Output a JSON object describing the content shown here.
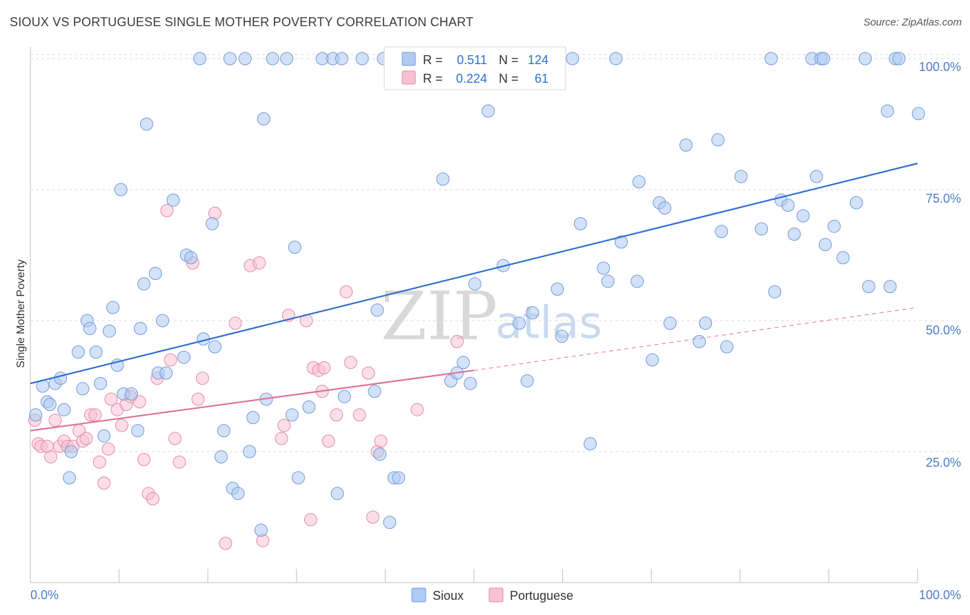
{
  "header": {
    "title": "SIOUX VS PORTUGUESE SINGLE MOTHER POVERTY CORRELATION CHART",
    "source": "Source: ZipAtlas.com"
  },
  "watermark": {
    "zip": "ZIP",
    "atlas": "atlas"
  },
  "legend": {
    "r_label": "R =",
    "n_label": "N =",
    "rows": [
      {
        "name": "Sioux",
        "r": "0.511",
        "n": "124",
        "fill": "#aecbf2",
        "stroke": "#6f9ad8"
      },
      {
        "name": "Portuguese",
        "r": "0.224",
        "n": "61",
        "fill": "#f7c2d3",
        "stroke": "#e48aa8"
      }
    ]
  },
  "bottom_legend": [
    {
      "name": "Sioux",
      "fill": "#aecbf2",
      "stroke": "#6f9ad8"
    },
    {
      "name": "Portuguese",
      "fill": "#f7c2d3",
      "stroke": "#e48aa8"
    }
  ],
  "chart_data": {
    "type": "scatter",
    "title": "SIOUX VS PORTUGUESE SINGLE MOTHER POVERTY CORRELATION CHART",
    "xlabel": "",
    "ylabel": "Single Mother Poverty",
    "xlim": [
      0,
      100
    ],
    "ylim": [
      0,
      103
    ],
    "x_tick_labels": [
      "0.0%",
      "100.0%"
    ],
    "y_ticks": [
      25,
      50,
      75,
      100
    ],
    "y_tick_labels": [
      "25.0%",
      "50.0%",
      "75.0%",
      "100.0%"
    ],
    "grid": true,
    "colors": {
      "sioux": "#6f9ad8",
      "sioux_fill": "#aecbf2",
      "sioux_line": "#2f6fd0",
      "portuguese": "#e48aa8",
      "portuguese_fill": "#f7c2d3",
      "portuguese_line": "#e0729a"
    },
    "series": [
      {
        "name": "Sioux",
        "trend": {
          "x": [
            0,
            100
          ],
          "y": [
            38,
            80
          ]
        },
        "points": [
          [
            0.6,
            32
          ],
          [
            1.4,
            37.5
          ],
          [
            1.9,
            34.5
          ],
          [
            2.2,
            34
          ],
          [
            2.8,
            38
          ],
          [
            3.4,
            39
          ],
          [
            3.8,
            33
          ],
          [
            4.4,
            20
          ],
          [
            4.6,
            25
          ],
          [
            5.4,
            44
          ],
          [
            5.9,
            37
          ],
          [
            6.4,
            50
          ],
          [
            6.7,
            48.5
          ],
          [
            7.4,
            44
          ],
          [
            7.9,
            38
          ],
          [
            8.3,
            28
          ],
          [
            8.9,
            48
          ],
          [
            9.3,
            52.5
          ],
          [
            9.8,
            41.5
          ],
          [
            10.2,
            75
          ],
          [
            10.5,
            36
          ],
          [
            11.4,
            36
          ],
          [
            12.1,
            29
          ],
          [
            12.4,
            48.5
          ],
          [
            12.8,
            57
          ],
          [
            13.1,
            87.5
          ],
          [
            14.1,
            59
          ],
          [
            14.4,
            40
          ],
          [
            14.9,
            50
          ],
          [
            15.3,
            40
          ],
          [
            16.1,
            73
          ],
          [
            17.3,
            43
          ],
          [
            17.6,
            62.5
          ],
          [
            18.1,
            62
          ],
          [
            19.1,
            100
          ],
          [
            19.5,
            46.5
          ],
          [
            20.5,
            68.5
          ],
          [
            20.8,
            45
          ],
          [
            21.5,
            24
          ],
          [
            21.8,
            29
          ],
          [
            22.5,
            100
          ],
          [
            22.8,
            18
          ],
          [
            23.4,
            17
          ],
          [
            24.2,
            100
          ],
          [
            24.7,
            25
          ],
          [
            25.1,
            31.5
          ],
          [
            26.0,
            10
          ],
          [
            26.3,
            88.5
          ],
          [
            26.6,
            35
          ],
          [
            27.3,
            100
          ],
          [
            28.9,
            100
          ],
          [
            29.5,
            32
          ],
          [
            29.8,
            64
          ],
          [
            30.2,
            20
          ],
          [
            31.4,
            33.5
          ],
          [
            32.9,
            100
          ],
          [
            34.1,
            100
          ],
          [
            34.6,
            17
          ],
          [
            35.1,
            100
          ],
          [
            35.4,
            35.5
          ],
          [
            37.4,
            100
          ],
          [
            38.8,
            36.5
          ],
          [
            39.1,
            52
          ],
          [
            39.4,
            24.5
          ],
          [
            39.8,
            100
          ],
          [
            40.5,
            11.5
          ],
          [
            41.0,
            20
          ],
          [
            41.5,
            20
          ],
          [
            43.5,
            100
          ],
          [
            44.5,
            100
          ],
          [
            46.5,
            77
          ],
          [
            46.9,
            100
          ],
          [
            47.4,
            38.5
          ],
          [
            48.1,
            40
          ],
          [
            48.8,
            42
          ],
          [
            49.6,
            38
          ],
          [
            50.1,
            57
          ],
          [
            51.6,
            90
          ],
          [
            52.1,
            100
          ],
          [
            53.3,
            60.5
          ],
          [
            55.1,
            49.5
          ],
          [
            56.0,
            38.5
          ],
          [
            56.6,
            51.5
          ],
          [
            58.1,
            100
          ],
          [
            59.4,
            56
          ],
          [
            59.9,
            47
          ],
          [
            61.1,
            100
          ],
          [
            62.0,
            68.5
          ],
          [
            63.1,
            26.5
          ],
          [
            64.6,
            60
          ],
          [
            65.1,
            57.5
          ],
          [
            66.0,
            100
          ],
          [
            66.6,
            65
          ],
          [
            68.4,
            57.5
          ],
          [
            68.6,
            76.5
          ],
          [
            70.1,
            42.5
          ],
          [
            70.9,
            72.5
          ],
          [
            71.5,
            71.5
          ],
          [
            72.1,
            49.5
          ],
          [
            73.9,
            83.5
          ],
          [
            75.4,
            46
          ],
          [
            76.1,
            49.5
          ],
          [
            77.5,
            84.5
          ],
          [
            77.9,
            67
          ],
          [
            78.5,
            45
          ],
          [
            80.1,
            77.5
          ],
          [
            82.4,
            67.5
          ],
          [
            83.5,
            100
          ],
          [
            83.9,
            55.5
          ],
          [
            84.6,
            73
          ],
          [
            85.4,
            72
          ],
          [
            86.1,
            66.5
          ],
          [
            87.1,
            70
          ],
          [
            88.1,
            100
          ],
          [
            88.6,
            77.5
          ],
          [
            89.1,
            100
          ],
          [
            89.4,
            100
          ],
          [
            89.6,
            64.5
          ],
          [
            90.6,
            68
          ],
          [
            91.6,
            62
          ],
          [
            93.1,
            72.5
          ],
          [
            94.1,
            100
          ],
          [
            94.5,
            56.5
          ],
          [
            96.6,
            90
          ],
          [
            96.9,
            56.5
          ],
          [
            97.5,
            100
          ],
          [
            97.9,
            100
          ],
          [
            100.1,
            89.5
          ]
        ]
      },
      {
        "name": "Portuguese",
        "trend": {
          "x": [
            0,
            50
          ],
          "y": [
            29,
            40.5
          ]
        },
        "trend_dashed": {
          "x": [
            50,
            100
          ],
          "y": [
            40.5,
            52.5
          ]
        },
        "points": [
          [
            0.5,
            31
          ],
          [
            0.9,
            26.5
          ],
          [
            1.2,
            26
          ],
          [
            1.9,
            26
          ],
          [
            2.3,
            24
          ],
          [
            2.8,
            31
          ],
          [
            3.3,
            26
          ],
          [
            3.8,
            27
          ],
          [
            4.2,
            26
          ],
          [
            4.8,
            26
          ],
          [
            5.5,
            29
          ],
          [
            5.9,
            27
          ],
          [
            6.3,
            27.5
          ],
          [
            6.8,
            32
          ],
          [
            7.3,
            32
          ],
          [
            7.8,
            23
          ],
          [
            8.3,
            19
          ],
          [
            8.8,
            25.5
          ],
          [
            9.1,
            35
          ],
          [
            9.8,
            33
          ],
          [
            10.3,
            30
          ],
          [
            10.8,
            34
          ],
          [
            11.3,
            35.5
          ],
          [
            12.3,
            34.5
          ],
          [
            12.8,
            23.5
          ],
          [
            13.3,
            17
          ],
          [
            13.8,
            16
          ],
          [
            14.3,
            39
          ],
          [
            15.4,
            71
          ],
          [
            15.8,
            42.5
          ],
          [
            16.3,
            27.5
          ],
          [
            16.8,
            23
          ],
          [
            18.3,
            61
          ],
          [
            18.9,
            35
          ],
          [
            19.4,
            39
          ],
          [
            20.8,
            70.5
          ],
          [
            22.0,
            7.5
          ],
          [
            23.1,
            49.5
          ],
          [
            24.8,
            60.5
          ],
          [
            25.8,
            61
          ],
          [
            26.2,
            8
          ],
          [
            28.3,
            27.5
          ],
          [
            28.6,
            30
          ],
          [
            29.1,
            51
          ],
          [
            31.1,
            50
          ],
          [
            31.6,
            12
          ],
          [
            31.9,
            41
          ],
          [
            32.5,
            40.5
          ],
          [
            32.9,
            36.5
          ],
          [
            33.1,
            41
          ],
          [
            33.6,
            27
          ],
          [
            34.5,
            32
          ],
          [
            35.6,
            55.5
          ],
          [
            36.1,
            42
          ],
          [
            37.1,
            32
          ],
          [
            38.1,
            40
          ],
          [
            38.6,
            12.5
          ],
          [
            39.1,
            25
          ],
          [
            39.5,
            27
          ],
          [
            43.6,
            33
          ],
          [
            48.1,
            46
          ]
        ]
      }
    ]
  }
}
